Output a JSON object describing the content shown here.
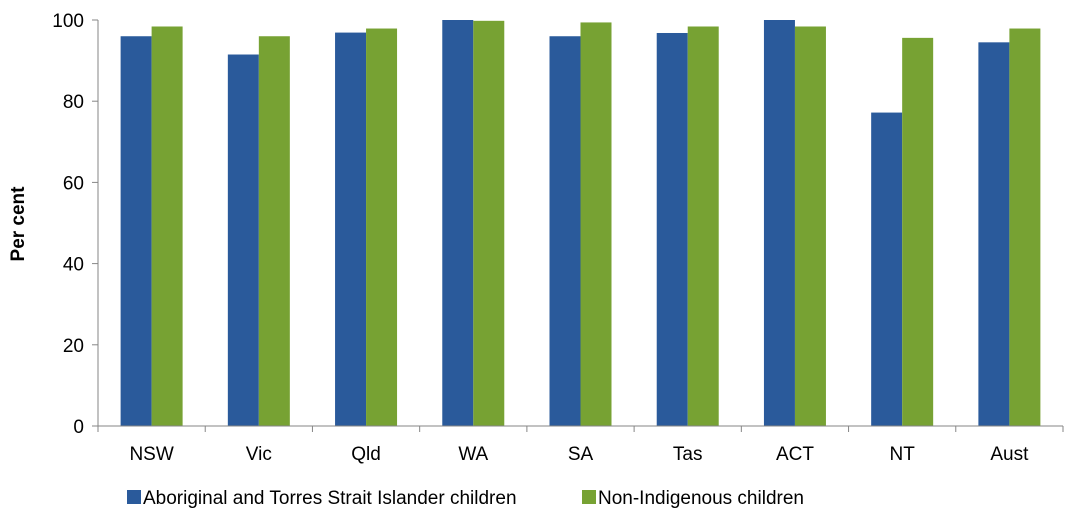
{
  "chart_data": {
    "type": "bar",
    "title": "",
    "xlabel": "",
    "ylabel": "Per cent",
    "ylim": [
      0,
      100
    ],
    "yticks": [
      0,
      20,
      40,
      60,
      80,
      100
    ],
    "grid": false,
    "legend": "bottom",
    "categories": [
      "NSW",
      "Vic",
      "Qld",
      "WA",
      "SA",
      "Tas",
      "ACT",
      "NT",
      "Aust"
    ],
    "series": [
      {
        "name": "Aboriginal and Torres Strait Islander children",
        "color": "#2a5a9b",
        "values": [
          96.0,
          91.5,
          96.9,
          100.0,
          96.0,
          96.8,
          100.0,
          77.2,
          94.5
        ]
      },
      {
        "name": "Non-Indigenous children",
        "color": "#77a233",
        "values": [
          98.4,
          96.0,
          97.9,
          99.8,
          99.4,
          98.4,
          98.4,
          95.6,
          97.9
        ]
      }
    ]
  }
}
